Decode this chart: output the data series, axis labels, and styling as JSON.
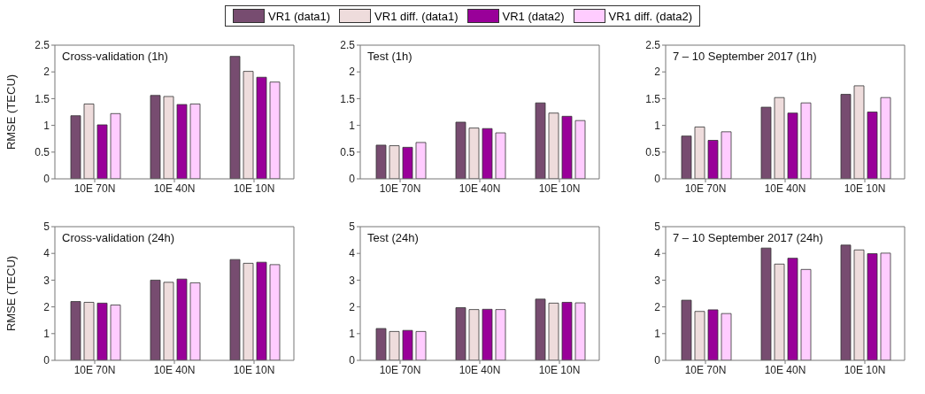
{
  "chart_data": [
    {
      "type": "bar",
      "title": "Cross-validation (1h)",
      "ylabel": "RMSE (TECU)",
      "categories": [
        "10E 70N",
        "10E 40N",
        "10E 10N"
      ],
      "ylim": [
        0,
        2.5
      ],
      "yticks": [
        0,
        0.5,
        1,
        1.5,
        2,
        2.5
      ],
      "legend": "top",
      "series": [
        {
          "name": "VR1 (data1)",
          "color": "#774c70",
          "values": [
            1.18,
            1.56,
            2.29
          ]
        },
        {
          "name": "VR1 diff. (data1)",
          "color": "#eedcdc",
          "values": [
            1.4,
            1.54,
            2.01
          ]
        },
        {
          "name": "VR1 (data2)",
          "color": "#990099",
          "values": [
            1.01,
            1.39,
            1.9
          ]
        },
        {
          "name": "VR1 diff. (data2)",
          "color": "#ffccff",
          "values": [
            1.22,
            1.4,
            1.81
          ]
        }
      ]
    },
    {
      "type": "bar",
      "title": "Test (1h)",
      "categories": [
        "10E 70N",
        "10E 40N",
        "10E 10N"
      ],
      "ylim": [
        0,
        2.5
      ],
      "yticks": [
        0,
        0.5,
        1,
        1.5,
        2,
        2.5
      ],
      "series": [
        {
          "color": "#774c70",
          "values": [
            0.63,
            1.06,
            1.42
          ]
        },
        {
          "color": "#eedcdc",
          "values": [
            0.62,
            0.95,
            1.23
          ]
        },
        {
          "color": "#990099",
          "values": [
            0.59,
            0.94,
            1.17
          ]
        },
        {
          "color": "#ffccff",
          "values": [
            0.68,
            0.86,
            1.09
          ]
        }
      ]
    },
    {
      "type": "bar",
      "title": "7 – 10 September 2017 (1h)",
      "categories": [
        "10E 70N",
        "10E 40N",
        "10E 10N"
      ],
      "ylim": [
        0,
        2.5
      ],
      "yticks": [
        0,
        0.5,
        1,
        1.5,
        2,
        2.5
      ],
      "series": [
        {
          "color": "#774c70",
          "values": [
            0.8,
            1.34,
            1.58
          ]
        },
        {
          "color": "#eedcdc",
          "values": [
            0.97,
            1.52,
            1.74
          ]
        },
        {
          "color": "#990099",
          "values": [
            0.72,
            1.23,
            1.25
          ]
        },
        {
          "color": "#ffccff",
          "values": [
            0.88,
            1.42,
            1.52
          ]
        }
      ]
    },
    {
      "type": "bar",
      "title": "Cross-validation (24h)",
      "ylabel": "RMSE (TECU)",
      "categories": [
        "10E 70N",
        "10E 40N",
        "10E 10N"
      ],
      "ylim": [
        0,
        5
      ],
      "yticks": [
        0,
        1,
        2,
        3,
        4,
        5
      ],
      "series": [
        {
          "color": "#774c70",
          "values": [
            2.2,
            3.0,
            3.77
          ]
        },
        {
          "color": "#eedcdc",
          "values": [
            2.17,
            2.92,
            3.63
          ]
        },
        {
          "color": "#990099",
          "values": [
            2.14,
            3.04,
            3.67
          ]
        },
        {
          "color": "#ffccff",
          "values": [
            2.07,
            2.9,
            3.58
          ]
        }
      ]
    },
    {
      "type": "bar",
      "title": "Test (24h)",
      "categories": [
        "10E 70N",
        "10E 40N",
        "10E 10N"
      ],
      "ylim": [
        0,
        5
      ],
      "yticks": [
        0,
        1,
        2,
        3,
        4,
        5
      ],
      "series": [
        {
          "color": "#774c70",
          "values": [
            1.19,
            1.97,
            2.29
          ]
        },
        {
          "color": "#eedcdc",
          "values": [
            1.08,
            1.9,
            2.14
          ]
        },
        {
          "color": "#990099",
          "values": [
            1.12,
            1.91,
            2.17
          ]
        },
        {
          "color": "#ffccff",
          "values": [
            1.08,
            1.9,
            2.15
          ]
        }
      ]
    },
    {
      "type": "bar",
      "title": "7 – 10 September 2017 (24h)",
      "categories": [
        "10E 70N",
        "10E 40N",
        "10E 10N"
      ],
      "ylim": [
        0,
        5
      ],
      "yticks": [
        0,
        1,
        2,
        3,
        4,
        5
      ],
      "series": [
        {
          "color": "#774c70",
          "values": [
            2.25,
            4.2,
            4.31
          ]
        },
        {
          "color": "#eedcdc",
          "values": [
            1.83,
            3.6,
            4.13
          ]
        },
        {
          "color": "#990099",
          "values": [
            1.89,
            3.82,
            3.99
          ]
        },
        {
          "color": "#ffccff",
          "values": [
            1.75,
            3.4,
            4.01
          ]
        }
      ]
    }
  ]
}
